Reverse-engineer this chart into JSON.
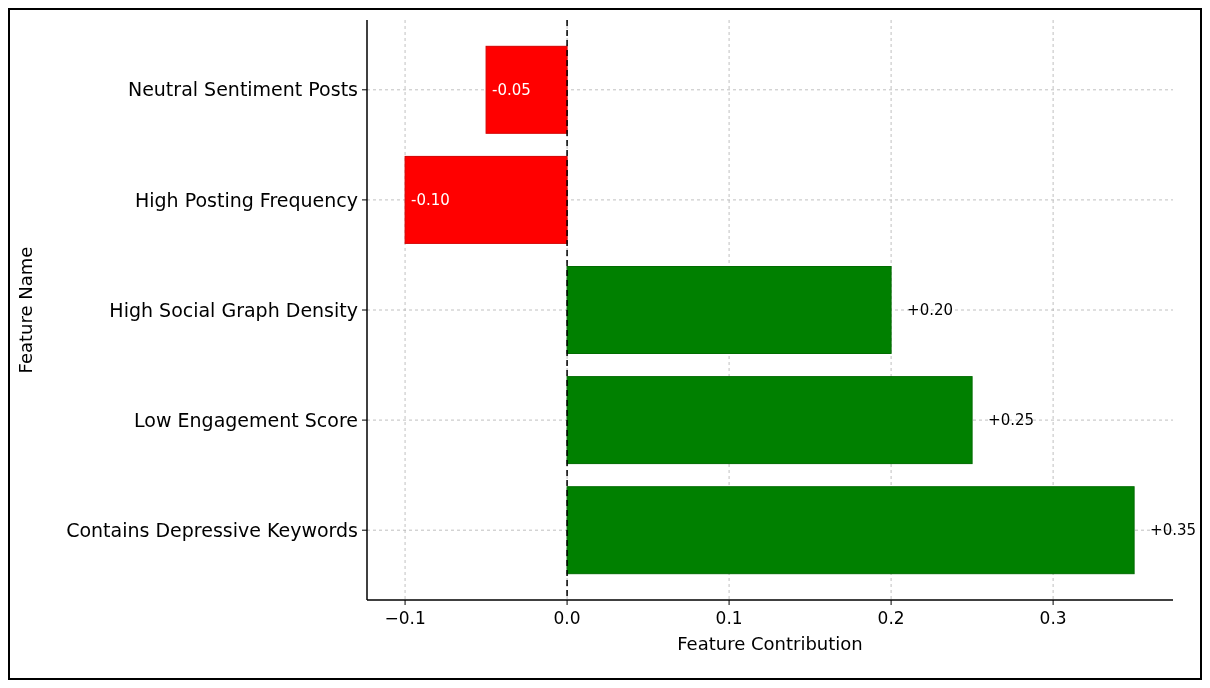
{
  "chart_data": {
    "type": "bar",
    "orientation": "horizontal",
    "xlabel": "Feature Contribution",
    "ylabel": "Feature Name",
    "categories": [
      "Neutral Sentiment Posts",
      "High Posting Frequency",
      "High Social Graph Density",
      "Low Engagement Score",
      "Contains Depressive Keywords"
    ],
    "values": [
      -0.05,
      -0.1,
      0.2,
      0.25,
      0.35
    ],
    "colors": [
      "#ff0000",
      "#ff0000",
      "#008000",
      "#008000",
      "#008000"
    ],
    "value_labels": [
      "-0.05",
      "-0.10",
      "+0.20",
      "+0.25",
      "+0.35"
    ],
    "xlim": [
      -0.1235,
      0.374
    ],
    "xticks": [
      {
        "value": -0.1,
        "label": "−0.1"
      },
      {
        "value": 0,
        "label": "0.0"
      },
      {
        "value": 0.1,
        "label": "0.1"
      },
      {
        "value": 0.2,
        "label": "0.2"
      },
      {
        "value": 0.3,
        "label": "0.3"
      }
    ],
    "grid": true,
    "ref_lines": [
      {
        "axis": "x",
        "value": 0,
        "color": "#000000",
        "line_style": "dashed"
      }
    ]
  }
}
